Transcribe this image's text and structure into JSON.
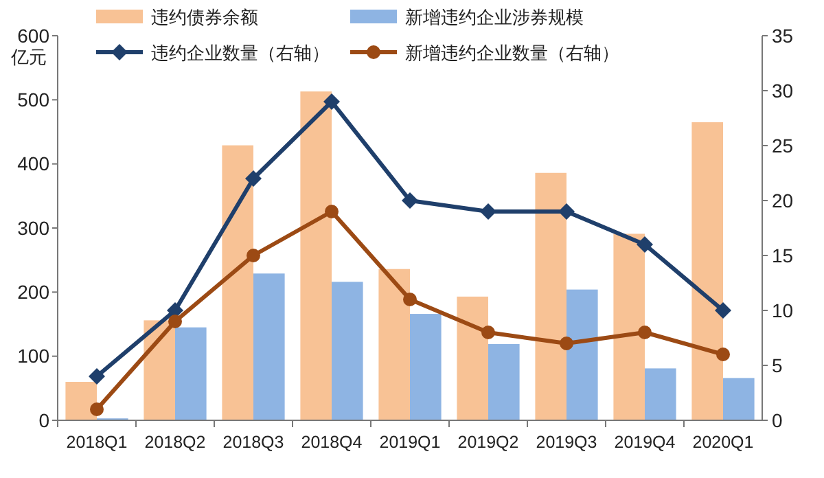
{
  "chart_data": {
    "type": "bar",
    "ylabel": "亿元",
    "categories": [
      "2018Q1",
      "2018Q2",
      "2018Q3",
      "2018Q4",
      "2019Q1",
      "2019Q2",
      "2019Q3",
      "2019Q4",
      "2020Q1"
    ],
    "series": [
      {
        "name": "违约债券余额",
        "color": "#f8c295",
        "values": [
          60,
          156,
          429,
          513,
          236,
          193,
          386,
          291,
          465
        ]
      },
      {
        "name": "新增违约企业涉券规模",
        "color": "#8eb4e3",
        "values": [
          3,
          145,
          229,
          216,
          166,
          119,
          204,
          81,
          66
        ]
      },
      {
        "name": "违约企业数量（右轴）",
        "type": "line",
        "axis": "y2",
        "color": "#1f3f6b",
        "marker": "diamond",
        "values": [
          4,
          10,
          22,
          29,
          20,
          19,
          19,
          16,
          10
        ]
      },
      {
        "name": "新增违约企业数量（右轴）",
        "type": "line",
        "axis": "y2",
        "color": "#9c4a14",
        "marker": "circle",
        "values": [
          1,
          9,
          15,
          19,
          11,
          8,
          7,
          8,
          6
        ]
      }
    ],
    "ylim": [
      0,
      600
    ],
    "yticks": [
      0,
      100,
      200,
      300,
      400,
      500,
      600
    ],
    "y2lim": [
      0,
      35
    ],
    "y2ticks": [
      0,
      5,
      10,
      15,
      20,
      25,
      30,
      35
    ],
    "grid": false,
    "legend": "top"
  }
}
